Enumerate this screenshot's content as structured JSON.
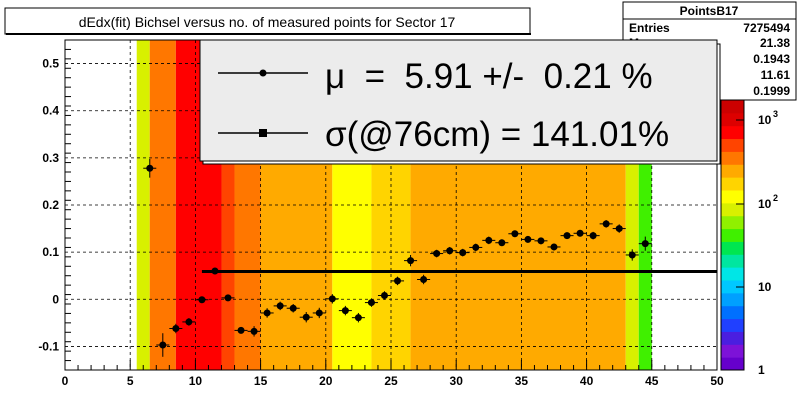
{
  "chart_data": {
    "type": "heatmap",
    "title": "dEdx(fit) Bichsel versus no. of measured points for Sector 17",
    "xlim": [
      0,
      50
    ],
    "ylim": [
      -0.15,
      0.55
    ],
    "xticks": [
      "0",
      "5",
      "10",
      "15",
      "20",
      "25",
      "30",
      "35",
      "40",
      "45",
      "50"
    ],
    "yticks": [
      "-0.1",
      "0",
      "0.1",
      "0.2",
      "0.3",
      "0.4",
      "0.5"
    ],
    "grid": true,
    "z_scale": "log",
    "colorbar_ticks": [
      "1",
      "10",
      "10",
      "10"
    ],
    "colorbar_exponents": [
      "",
      "",
      "2",
      "3"
    ],
    "colorbar_levels": [
      "#6600cc",
      "#7d12d8",
      "#4a1ee0",
      "#2040ff",
      "#0070ff",
      "#00a0ff",
      "#00c8ff",
      "#00e6e6",
      "#00e6a0",
      "#00e650",
      "#40f000",
      "#90f000",
      "#d8f000",
      "#ffff00",
      "#ffd400",
      "#ffaa00",
      "#ff7700",
      "#ff4400",
      "#ff0000",
      "#dd0000",
      "#cc0000"
    ],
    "heatmap_columns": [
      {
        "x0": 5.5,
        "x1": 6.5,
        "color": "#d8f000"
      },
      {
        "x0": 6.5,
        "x1": 8.5,
        "color": "#ff7700"
      },
      {
        "x0": 8.5,
        "x1": 12.0,
        "color": "#ff0000"
      },
      {
        "x0": 12.0,
        "x1": 13.0,
        "color": "#ff4400"
      },
      {
        "x0": 13.0,
        "x1": 15.0,
        "color": "#ff7700"
      },
      {
        "x0": 15.0,
        "x1": 20.5,
        "color": "#ffaa00"
      },
      {
        "x0": 20.5,
        "x1": 23.5,
        "color": "#ffff00"
      },
      {
        "x0": 23.5,
        "x1": 26.5,
        "color": "#ffd400"
      },
      {
        "x0": 26.5,
        "x1": 43.0,
        "color": "#ffaa00"
      },
      {
        "x0": 43.0,
        "x1": 44.0,
        "color": "#d8f000"
      },
      {
        "x0": 44.0,
        "x1": 45.0,
        "color": "#40f000"
      }
    ],
    "series": [
      {
        "name": "μ = 5.91 +/- 0.21 %",
        "x": [
          6.5,
          7.5,
          8.5,
          9.5,
          10.5,
          11.5,
          12.5,
          13.5,
          14.5,
          15.5,
          16.5,
          17.5,
          18.5,
          19.5,
          20.5,
          21.5,
          22.5,
          23.5,
          24.5,
          25.5,
          26.5,
          27.5,
          28.5,
          29.5,
          30.5,
          31.5,
          32.5,
          33.5,
          34.5,
          35.5,
          36.5,
          37.5,
          38.5,
          39.5,
          40.5,
          41.5,
          42.5,
          43.5,
          44.5
        ],
        "y": [
          0.278,
          -0.097,
          -0.062,
          -0.048,
          -0.001,
          0.06,
          0.003,
          -0.066,
          -0.068,
          -0.029,
          -0.014,
          -0.019,
          -0.038,
          -0.029,
          0.001,
          -0.024,
          -0.039,
          -0.007,
          0.008,
          0.039,
          0.082,
          0.042,
          0.097,
          0.103,
          0.099,
          0.11,
          0.125,
          0.12,
          0.139,
          0.127,
          0.124,
          0.111,
          0.135,
          0.14,
          0.135,
          0.16,
          0.15,
          0.094,
          0.118
        ],
        "yerr": [
          0.02,
          0.025,
          0.01,
          0.008,
          0.006,
          0.006,
          0.006,
          0.006,
          0.011,
          0.01,
          0.009,
          0.009,
          0.011,
          0.011,
          0.01,
          0.01,
          0.01,
          0.009,
          0.009,
          0.009,
          0.012,
          0.01,
          0.008,
          0.008,
          0.008,
          0.008,
          0.008,
          0.007,
          0.007,
          0.007,
          0.007,
          0.007,
          0.007,
          0.007,
          0.008,
          0.008,
          0.009,
          0.012,
          0.015
        ]
      }
    ],
    "fit_line": {
      "x0": 10.5,
      "x1": 50,
      "y": 0.059
    },
    "legend": {
      "position": "top",
      "entries": [
        {
          "label": "μ  =  5.91 +/-  0.21 %",
          "marker": "dot"
        },
        {
          "label": "σ(@76cm) = 141.01%",
          "marker": "square"
        }
      ]
    },
    "stats_box": {
      "title": "PointsB17",
      "rows": [
        {
          "label": "Entries",
          "value": "7275494"
        },
        {
          "label": "M",
          "value": "21.38"
        },
        {
          "label": "",
          "value": "0.1943"
        },
        {
          "label": "",
          "value": "11.61"
        },
        {
          "label": "",
          "value": "0.1999"
        }
      ]
    }
  }
}
